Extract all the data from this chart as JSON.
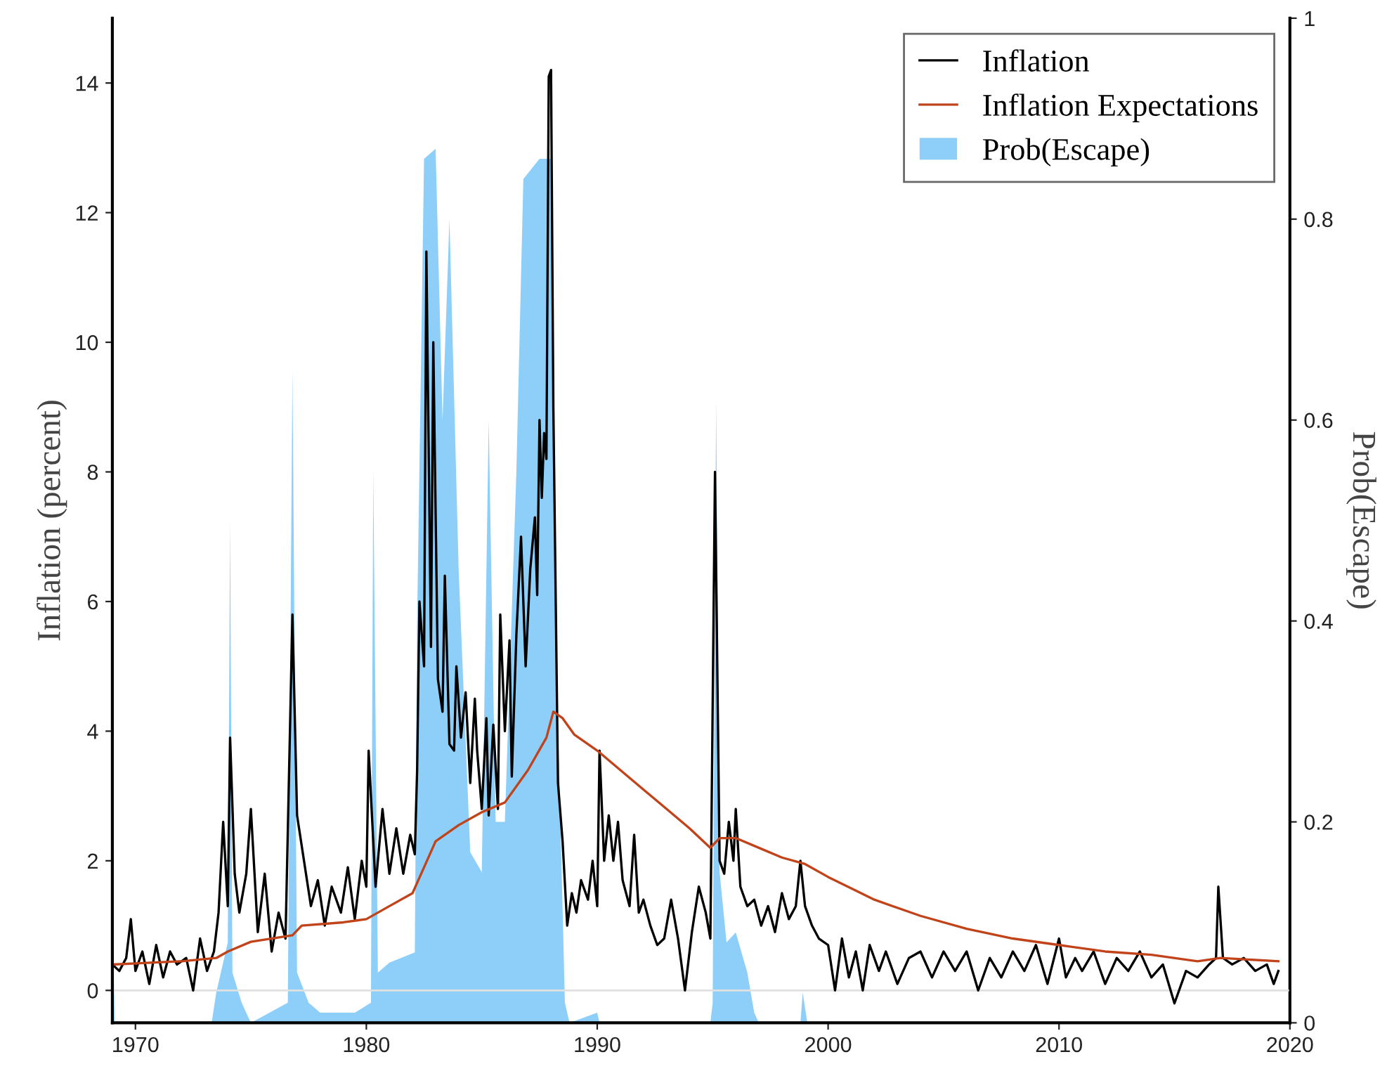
{
  "chart_data": {
    "type": "line",
    "ylabel": "Inflation (percent)",
    "y2label": "Prob(Escape)",
    "xlim": [
      1969,
      2020
    ],
    "xticks": [
      1970,
      1980,
      1990,
      2000,
      2010,
      2020
    ],
    "ylim": [
      -0.5,
      15
    ],
    "yticks": [
      0,
      2,
      4,
      6,
      8,
      10,
      12,
      14
    ],
    "y2lim": [
      0,
      1
    ],
    "y2ticks": [
      0,
      0.2,
      0.4,
      0.6,
      0.8,
      1
    ],
    "grid": false,
    "legend": "top right",
    "marker": "none",
    "line_style": "solid",
    "ref_lines": [
      {
        "axis": "y",
        "value": 0,
        "color": "#e0e0e0"
      }
    ],
    "series": [
      {
        "name": "Inflation",
        "color": "#000000",
        "x": [
          1969.0,
          1969.3,
          1969.6,
          1969.8,
          1970.0,
          1970.3,
          1970.6,
          1970.9,
          1971.2,
          1971.5,
          1971.8,
          1972.2,
          1972.5,
          1972.8,
          1973.1,
          1973.4,
          1973.6,
          1973.8,
          1974.0,
          1974.1,
          1974.3,
          1974.5,
          1974.8,
          1975.0,
          1975.3,
          1975.6,
          1975.9,
          1976.2,
          1976.5,
          1976.8,
          1977.0,
          1977.3,
          1977.6,
          1977.9,
          1978.2,
          1978.5,
          1978.9,
          1979.2,
          1979.5,
          1979.8,
          1980.0,
          1980.1,
          1980.4,
          1980.7,
          1981.0,
          1981.3,
          1981.6,
          1981.9,
          1982.1,
          1982.2,
          1982.3,
          1982.5,
          1982.6,
          1982.8,
          1982.9,
          1983.1,
          1983.3,
          1983.4,
          1983.6,
          1983.8,
          1983.9,
          1984.1,
          1984.3,
          1984.5,
          1984.7,
          1984.8,
          1985.0,
          1985.2,
          1985.3,
          1985.5,
          1985.7,
          1985.8,
          1986.0,
          1986.2,
          1986.3,
          1986.5,
          1986.7,
          1986.9,
          1987.1,
          1987.3,
          1987.4,
          1987.5,
          1987.6,
          1987.7,
          1987.8,
          1987.9,
          1988.0,
          1988.1,
          1988.3,
          1988.5,
          1988.7,
          1988.9,
          1989.1,
          1989.3,
          1989.6,
          1989.8,
          1990.0,
          1990.1,
          1990.3,
          1990.5,
          1990.7,
          1990.9,
          1991.1,
          1991.4,
          1991.6,
          1991.8,
          1992.0,
          1992.3,
          1992.6,
          1992.9,
          1993.2,
          1993.5,
          1993.8,
          1994.1,
          1994.4,
          1994.7,
          1994.9,
          1995.1,
          1995.3,
          1995.5,
          1995.7,
          1995.9,
          1996.0,
          1996.2,
          1996.5,
          1996.8,
          1997.1,
          1997.4,
          1997.7,
          1998.0,
          1998.3,
          1998.6,
          1998.8,
          1999.0,
          1999.3,
          1999.6,
          2000.0,
          2000.3,
          2000.6,
          2000.9,
          2001.2,
          2001.5,
          2001.8,
          2002.2,
          2002.5,
          2003.0,
          2003.5,
          2004.0,
          2004.5,
          2005.0,
          2005.5,
          2006.0,
          2006.5,
          2007.0,
          2007.5,
          2008.0,
          2008.5,
          2009.0,
          2009.5,
          2010.0,
          2010.3,
          2010.7,
          2011.0,
          2011.5,
          2012.0,
          2012.5,
          2013.0,
          2013.5,
          2014.0,
          2014.5,
          2015.0,
          2015.5,
          2016.0,
          2016.5,
          2016.8,
          2016.9,
          2017.1,
          2017.5,
          2018.0,
          2018.5,
          2019.0,
          2019.3,
          2019.5
        ],
        "values": [
          0.4,
          0.3,
          0.5,
          1.1,
          0.3,
          0.6,
          0.1,
          0.7,
          0.2,
          0.6,
          0.4,
          0.5,
          0.0,
          0.8,
          0.3,
          0.6,
          1.2,
          2.6,
          1.3,
          3.9,
          1.8,
          1.2,
          1.8,
          2.8,
          0.9,
          1.8,
          0.6,
          1.2,
          0.8,
          5.8,
          2.7,
          2.0,
          1.3,
          1.7,
          1.0,
          1.6,
          1.2,
          1.9,
          1.1,
          2.0,
          1.6,
          3.7,
          1.6,
          2.8,
          1.8,
          2.5,
          1.8,
          2.4,
          2.1,
          3.4,
          6.0,
          5.0,
          11.4,
          5.3,
          10.0,
          4.8,
          4.3,
          6.4,
          3.8,
          3.7,
          5.0,
          3.9,
          4.6,
          3.2,
          4.5,
          3.7,
          2.8,
          4.2,
          2.7,
          4.1,
          2.8,
          5.8,
          4.0,
          5.4,
          3.3,
          5.5,
          7.0,
          5.0,
          6.5,
          7.3,
          6.1,
          8.8,
          7.6,
          8.6,
          8.2,
          14.1,
          14.2,
          9.0,
          3.2,
          2.3,
          1.0,
          1.5,
          1.2,
          1.7,
          1.4,
          2.0,
          1.3,
          3.7,
          2.0,
          2.7,
          2.0,
          2.6,
          1.7,
          1.3,
          2.4,
          1.2,
          1.4,
          1.0,
          0.7,
          0.8,
          1.4,
          0.8,
          0.0,
          0.9,
          1.6,
          1.2,
          0.8,
          8.0,
          2.0,
          1.8,
          2.6,
          2.0,
          2.8,
          1.6,
          1.3,
          1.4,
          1.0,
          1.3,
          0.9,
          1.5,
          1.1,
          1.3,
          2.0,
          1.3,
          1.0,
          0.8,
          0.7,
          0.0,
          0.8,
          0.2,
          0.6,
          0.0,
          0.7,
          0.3,
          0.6,
          0.1,
          0.5,
          0.6,
          0.2,
          0.6,
          0.3,
          0.6,
          0.0,
          0.5,
          0.2,
          0.6,
          0.3,
          0.7,
          0.1,
          0.8,
          0.2,
          0.5,
          0.3,
          0.6,
          0.1,
          0.5,
          0.3,
          0.6,
          0.2,
          0.4,
          -0.2,
          0.3,
          0.2,
          0.4,
          0.5,
          1.6,
          0.5,
          0.4,
          0.5,
          0.3,
          0.4,
          0.1,
          0.3
        ]
      },
      {
        "name": "Inflation Expectations",
        "color": "#c0431a",
        "x": [
          1969,
          1972,
          1973.5,
          1974,
          1975,
          1976.8,
          1977.2,
          1979,
          1980,
          1981,
          1982,
          1982.5,
          1983,
          1984,
          1985,
          1986,
          1987,
          1987.8,
          1988.1,
          1988.5,
          1989,
          1990,
          1991,
          1992,
          1993,
          1994,
          1994.9,
          1995.3,
          1996,
          1997,
          1998,
          1999,
          2000,
          2002,
          2004,
          2006,
          2008,
          2010,
          2012,
          2014,
          2016,
          2017,
          2019.5
        ],
        "values": [
          0.4,
          0.45,
          0.5,
          0.6,
          0.75,
          0.85,
          1.0,
          1.05,
          1.1,
          1.3,
          1.5,
          1.9,
          2.3,
          2.55,
          2.75,
          2.9,
          3.4,
          3.9,
          4.3,
          4.2,
          3.95,
          3.7,
          3.4,
          3.1,
          2.8,
          2.5,
          2.2,
          2.35,
          2.35,
          2.2,
          2.05,
          1.95,
          1.75,
          1.4,
          1.15,
          0.95,
          0.8,
          0.7,
          0.6,
          0.55,
          0.45,
          0.5,
          0.45
        ]
      },
      {
        "name": "Prob(Escape)",
        "type": "area",
        "axis": "y2",
        "color": "#8ecffa",
        "x": [
          1969.0,
          1969.1,
          1973.3,
          1973.5,
          1974.0,
          1974.1,
          1974.2,
          1974.6,
          1975.0,
          1976.6,
          1976.8,
          1977.0,
          1977.5,
          1978.0,
          1979.5,
          1980.2,
          1980.3,
          1980.5,
          1981.0,
          1982.1,
          1982.2,
          1982.5,
          1983.0,
          1983.3,
          1983.6,
          1984.0,
          1984.5,
          1985.0,
          1985.3,
          1985.6,
          1986.0,
          1986.5,
          1986.8,
          1987.5,
          1988.0,
          1988.3,
          1988.6,
          1988.8,
          1990.0,
          1990.1,
          1994.9,
          1995.0,
          1995.15,
          1995.3,
          1995.6,
          1996.0,
          1996.5,
          1996.8,
          1997.0,
          1998.8,
          1998.9,
          1999.1,
          2019.5
        ],
        "values": [
          0.15,
          0.0,
          0.0,
          0.03,
          0.08,
          0.5,
          0.05,
          0.02,
          0.0,
          0.02,
          0.65,
          0.05,
          0.02,
          0.01,
          0.01,
          0.02,
          0.55,
          0.05,
          0.06,
          0.07,
          0.4,
          0.86,
          0.87,
          0.6,
          0.8,
          0.45,
          0.17,
          0.15,
          0.6,
          0.2,
          0.2,
          0.55,
          0.84,
          0.86,
          0.86,
          0.3,
          0.02,
          0.0,
          0.01,
          0.0,
          0.0,
          0.02,
          0.62,
          0.15,
          0.08,
          0.09,
          0.05,
          0.01,
          0.0,
          0.0,
          0.03,
          0.0,
          0.0
        ]
      }
    ]
  }
}
